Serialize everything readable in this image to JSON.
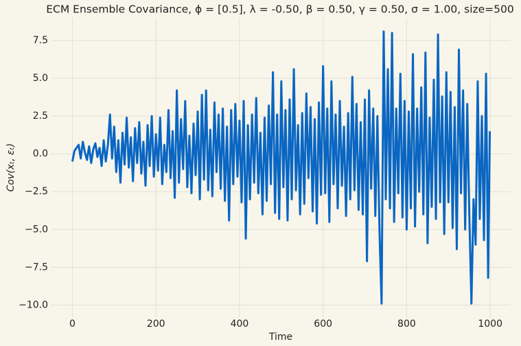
{
  "chart_data": {
    "type": "line",
    "title": "ECM Ensemble Covariance, ϕ = [0.5], λ = -0.50, β = 0.50, γ = 0.50, σ = 1.00, size=500",
    "xlabel": "Time",
    "ylabel": "Cov(xₜ, εₜ)",
    "x": [
      0,
      5,
      10,
      15,
      20,
      25,
      30,
      35,
      40,
      45,
      50,
      55,
      60,
      65,
      70,
      75,
      80,
      85,
      90,
      95,
      100,
      105,
      110,
      115,
      120,
      125,
      130,
      135,
      140,
      145,
      150,
      155,
      160,
      165,
      170,
      175,
      180,
      185,
      190,
      195,
      200,
      205,
      210,
      215,
      220,
      225,
      230,
      235,
      240,
      245,
      250,
      255,
      260,
      265,
      270,
      275,
      280,
      285,
      290,
      295,
      300,
      305,
      310,
      315,
      320,
      325,
      330,
      335,
      340,
      345,
      350,
      355,
      360,
      365,
      370,
      375,
      380,
      385,
      390,
      395,
      400,
      405,
      410,
      415,
      420,
      425,
      430,
      435,
      440,
      445,
      450,
      455,
      460,
      465,
      470,
      475,
      480,
      485,
      490,
      495,
      500,
      505,
      510,
      515,
      520,
      525,
      530,
      535,
      540,
      545,
      550,
      555,
      560,
      565,
      570,
      575,
      580,
      585,
      590,
      595,
      600,
      605,
      610,
      615,
      620,
      625,
      630,
      635,
      640,
      645,
      650,
      655,
      660,
      665,
      670,
      675,
      680,
      685,
      690,
      695,
      700,
      705,
      710,
      715,
      720,
      725,
      730,
      735,
      740,
      745,
      750,
      755,
      760,
      765,
      770,
      775,
      780,
      785,
      790,
      795,
      800,
      805,
      810,
      815,
      820,
      825,
      830,
      835,
      840,
      845,
      850,
      855,
      860,
      865,
      870,
      875,
      880,
      885,
      890,
      895,
      900,
      905,
      910,
      915,
      920,
      925,
      930,
      935,
      940,
      945,
      950,
      955,
      960,
      965,
      970,
      975,
      980,
      985,
      990,
      995,
      999
    ],
    "series": [
      {
        "name": "Cov",
        "color": "#0a66c2",
        "values": [
          -0.5,
          0.2,
          0.4,
          0.6,
          -0.3,
          0.8,
          0.1,
          -0.4,
          0.5,
          -0.6,
          0.3,
          0.7,
          -0.2,
          0.4,
          -0.8,
          0.9,
          -0.5,
          0.6,
          2.6,
          -0.3,
          1.8,
          -1.2,
          0.9,
          -1.9,
          1.4,
          -0.7,
          2.4,
          -0.9,
          1.1,
          -1.8,
          1.7,
          -0.6,
          2.1,
          -1.3,
          0.8,
          -2.1,
          1.9,
          -0.8,
          2.5,
          -1.5,
          1.3,
          -1.1,
          2.4,
          -2.0,
          0.6,
          -1.2,
          2.9,
          -1.6,
          1.5,
          -2.9,
          4.2,
          -1.9,
          2.3,
          -1.0,
          3.5,
          -2.2,
          1.2,
          -2.6,
          2.0,
          -1.4,
          2.8,
          -3.0,
          3.9,
          -1.7,
          4.2,
          -2.4,
          1.6,
          -2.8,
          3.4,
          -1.2,
          2.6,
          -2.3,
          3.0,
          -3.1,
          1.8,
          -4.4,
          2.9,
          -2.0,
          3.3,
          -1.5,
          2.2,
          -3.2,
          3.5,
          -5.6,
          1.9,
          -3.0,
          2.6,
          -1.9,
          3.7,
          -2.6,
          1.4,
          -4.0,
          2.4,
          -3.1,
          3.2,
          -2.0,
          5.4,
          -3.9,
          2.6,
          -4.3,
          4.8,
          -2.2,
          2.9,
          -4.4,
          3.6,
          -3.0,
          5.6,
          -2.4,
          1.9,
          -4.0,
          2.7,
          -3.3,
          4.0,
          -1.6,
          3.1,
          -3.8,
          2.3,
          -4.6,
          3.4,
          -2.7,
          5.8,
          -2.6,
          3.0,
          -4.5,
          4.8,
          -2.0,
          2.6,
          -3.6,
          3.5,
          -2.1,
          1.8,
          -4.1,
          2.7,
          -3.0,
          5.1,
          -2.4,
          3.3,
          -3.7,
          2.1,
          -4.0,
          3.6,
          -7.1,
          4.2,
          -2.3,
          3.0,
          -4.1,
          2.5,
          -5.1,
          -9.9,
          8.1,
          -3.0,
          5.6,
          -3.6,
          8.0,
          -4.5,
          3.0,
          -2.6,
          5.3,
          -4.2,
          3.5,
          -5.0,
          2.8,
          -3.6,
          6.6,
          -4.8,
          3.0,
          -2.5,
          4.4,
          -4.0,
          6.7,
          -5.9,
          2.4,
          -3.5,
          4.9,
          -4.3,
          7.9,
          -3.2,
          3.8,
          -5.3,
          5.4,
          -3.2,
          4.1,
          -4.9,
          3.1,
          -6.3,
          6.9,
          -2.6,
          4.2,
          -5.0,
          3.3,
          -4.1,
          -9.9,
          -3.0,
          -6.0,
          4.8,
          -4.3,
          2.5,
          -5.7,
          5.3,
          -8.2,
          1.5
        ]
      }
    ],
    "xlim": [
      -50,
      1049
    ],
    "ylim": [
      -10.8,
      9.0
    ],
    "xticks": [
      0,
      200,
      400,
      600,
      800,
      1000
    ],
    "yticks": [
      {
        "value": -10,
        "label": "−10.0"
      },
      {
        "value": -7.5,
        "label": "−7.5"
      },
      {
        "value": -5,
        "label": "−5.0"
      },
      {
        "value": -2.5,
        "label": "−2.5"
      },
      {
        "value": 0,
        "label": "0.0"
      },
      {
        "value": 2.5,
        "label": "2.5"
      },
      {
        "value": 5,
        "label": "5.0"
      },
      {
        "value": 7.5,
        "label": "7.5"
      }
    ],
    "grid": true
  }
}
